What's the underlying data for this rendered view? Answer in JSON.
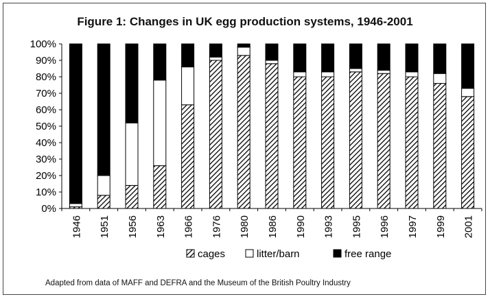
{
  "chart_data": {
    "type": "bar",
    "stacked": true,
    "percent": true,
    "title": "Figure 1: Changes in UK egg production systems, 1946-2001",
    "note": "Adapted from data of MAFF and DEFRA and the Museum of the British Poultry Industry",
    "categories": [
      "1946",
      "1951",
      "1956",
      "1963",
      "1966",
      "1976",
      "1980",
      "1986",
      "1990",
      "1993",
      "1995",
      "1996",
      "1997",
      "1999",
      "2001"
    ],
    "series": [
      {
        "name": "cages",
        "values": [
          1,
          8,
          14,
          26,
          63,
          90,
          93,
          88,
          80,
          80,
          83,
          82,
          80,
          76,
          68
        ]
      },
      {
        "name": "litter/barn",
        "values": [
          2,
          12,
          38,
          52,
          23,
          2,
          5,
          2,
          3,
          3,
          2,
          2,
          3,
          6,
          5
        ]
      },
      {
        "name": "free range",
        "values": [
          97,
          80,
          48,
          22,
          14,
          8,
          2,
          10,
          17,
          17,
          15,
          16,
          17,
          18,
          27
        ]
      }
    ],
    "yticks": [
      "0%",
      "10%",
      "20%",
      "30%",
      "40%",
      "50%",
      "60%",
      "70%",
      "80%",
      "90%",
      "100%"
    ],
    "ylim": [
      0,
      100
    ],
    "grid": false,
    "legend_position": "bottom",
    "colors": {
      "cages": "hatched",
      "litter/barn": "#ffffff",
      "free range": "#000000"
    }
  }
}
